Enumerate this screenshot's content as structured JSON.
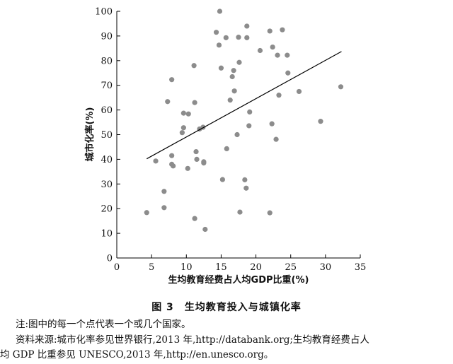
{
  "chart_data": {
    "type": "scatter",
    "xlabel": "生均教育经费占人均GDP比重(%)",
    "ylabel": "城市化率(%)",
    "xlim": [
      0,
      35
    ],
    "ylim": [
      0,
      100
    ],
    "xticks": [
      0,
      5,
      10,
      15,
      20,
      25,
      30,
      35
    ],
    "yticks": [
      0,
      10,
      20,
      30,
      40,
      50,
      60,
      70,
      80,
      90,
      100
    ],
    "grid": false,
    "marker_color": "#8c8c8c",
    "line_color": "#000000",
    "trendline": {
      "x": [
        4.3,
        32.3
      ],
      "y": [
        40.2,
        83.7
      ]
    },
    "points": [
      {
        "x": 4.3,
        "y": 18.4
      },
      {
        "x": 5.6,
        "y": 39.3
      },
      {
        "x": 6.8,
        "y": 27.0
      },
      {
        "x": 6.8,
        "y": 20.4
      },
      {
        "x": 7.3,
        "y": 63.4
      },
      {
        "x": 7.9,
        "y": 72.3
      },
      {
        "x": 7.9,
        "y": 41.5
      },
      {
        "x": 7.9,
        "y": 38.0
      },
      {
        "x": 8.1,
        "y": 37.3
      },
      {
        "x": 9.4,
        "y": 50.8
      },
      {
        "x": 9.6,
        "y": 58.7
      },
      {
        "x": 9.6,
        "y": 52.8
      },
      {
        "x": 10.2,
        "y": 36.3
      },
      {
        "x": 10.3,
        "y": 58.4
      },
      {
        "x": 11.1,
        "y": 78.0
      },
      {
        "x": 11.2,
        "y": 63.0
      },
      {
        "x": 11.2,
        "y": 16.0
      },
      {
        "x": 11.4,
        "y": 43.1
      },
      {
        "x": 11.5,
        "y": 40.0
      },
      {
        "x": 11.9,
        "y": 52.3
      },
      {
        "x": 12.4,
        "y": 53.0
      },
      {
        "x": 12.5,
        "y": 39.0
      },
      {
        "x": 12.5,
        "y": 38.5
      },
      {
        "x": 12.7,
        "y": 11.6
      },
      {
        "x": 14.3,
        "y": 91.5
      },
      {
        "x": 14.7,
        "y": 86.3
      },
      {
        "x": 14.8,
        "y": 100.0
      },
      {
        "x": 15.0,
        "y": 77.0
      },
      {
        "x": 15.2,
        "y": 31.8
      },
      {
        "x": 15.7,
        "y": 89.3
      },
      {
        "x": 15.8,
        "y": 44.3
      },
      {
        "x": 16.3,
        "y": 64.0
      },
      {
        "x": 16.6,
        "y": 73.5
      },
      {
        "x": 16.8,
        "y": 76.0
      },
      {
        "x": 16.9,
        "y": 67.7
      },
      {
        "x": 17.3,
        "y": 50.0
      },
      {
        "x": 17.5,
        "y": 89.5
      },
      {
        "x": 17.6,
        "y": 79.3
      },
      {
        "x": 17.7,
        "y": 18.6
      },
      {
        "x": 18.4,
        "y": 31.7
      },
      {
        "x": 18.6,
        "y": 28.3
      },
      {
        "x": 18.7,
        "y": 89.3
      },
      {
        "x": 18.7,
        "y": 94.0
      },
      {
        "x": 19.0,
        "y": 53.6
      },
      {
        "x": 19.1,
        "y": 59.2
      },
      {
        "x": 20.6,
        "y": 84.1
      },
      {
        "x": 22.0,
        "y": 92.0
      },
      {
        "x": 22.0,
        "y": 18.3
      },
      {
        "x": 22.3,
        "y": 54.4
      },
      {
        "x": 22.4,
        "y": 85.5
      },
      {
        "x": 22.9,
        "y": 48.1
      },
      {
        "x": 23.1,
        "y": 82.2
      },
      {
        "x": 23.3,
        "y": 66.0
      },
      {
        "x": 23.8,
        "y": 92.5
      },
      {
        "x": 24.5,
        "y": 82.2
      },
      {
        "x": 24.6,
        "y": 75.0
      },
      {
        "x": 26.2,
        "y": 67.5
      },
      {
        "x": 29.3,
        "y": 55.4
      },
      {
        "x": 32.2,
        "y": 69.4
      }
    ]
  },
  "caption": "图 3　生均教育投入与城镇化率",
  "notes": {
    "line1": "注:图中的每一个点代表一个或几个国家。",
    "line2": "资料来源:城市化率参见世界银行,2013 年,http://databank.org;生均教育经费占人",
    "line3": "均 GDP 比重参见 UNESCO,2013 年,http://en.unesco.org。"
  }
}
